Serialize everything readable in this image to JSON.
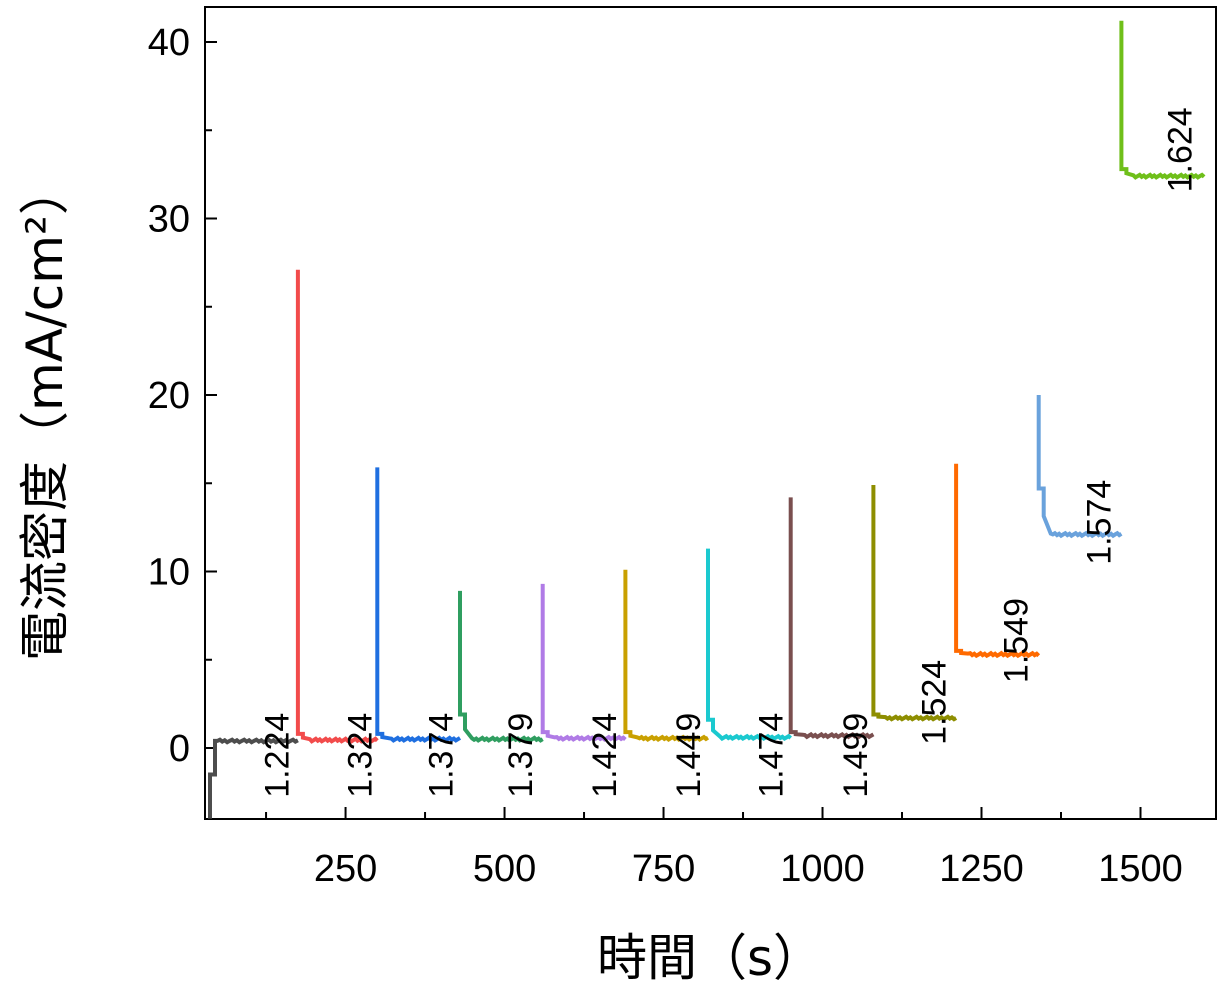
{
  "chart_data": {
    "type": "line",
    "title": "",
    "xlabel": "時間（s）",
    "ylabel": "電流密度（mA/cm²）",
    "xlim": [
      30,
      1610
    ],
    "ylim": [
      -4,
      42
    ],
    "x_ticks": [
      250,
      500,
      750,
      1000,
      1250,
      1500
    ],
    "x_tick_labels": [
      "250",
      "500",
      "750",
      "1000",
      "1250",
      "1500"
    ],
    "y_ticks": [
      0,
      10,
      20,
      30,
      40
    ],
    "y_tick_labels": [
      "0",
      "10",
      "20",
      "30",
      "40"
    ],
    "grid": false,
    "legend": "none",
    "series": [
      {
        "label": "1.224",
        "color": "#4d4d4d",
        "x_start": 40,
        "x_end": 175,
        "peak": -4.0,
        "steady": 0.4,
        "shoulder": 0.4,
        "label_x": 160,
        "label_y_top": 2.0
      },
      {
        "label": "1.324",
        "color": "#f24b4b",
        "x_start": 175,
        "x_end": 300,
        "peak": 27.1,
        "steady": 0.45,
        "shoulder": 0.8,
        "label_x": 291,
        "label_y_top": 2.0
      },
      {
        "label": "1.374",
        "color": "#1f6fe0",
        "x_start": 300,
        "x_end": 430,
        "peak": 15.9,
        "steady": 0.5,
        "shoulder": 0.8,
        "label_x": 418,
        "label_y_top": 2.0
      },
      {
        "label": "1.379",
        "color": "#2f9e60",
        "x_start": 430,
        "x_end": 560,
        "peak": 8.9,
        "steady": 0.5,
        "shoulder": 1.9,
        "label_x": 543,
        "label_y_top": 2.0
      },
      {
        "label": "1.424",
        "color": "#b07be6",
        "x_start": 560,
        "x_end": 690,
        "peak": 9.3,
        "steady": 0.55,
        "shoulder": 0.9,
        "label_x": 675,
        "label_y_top": 2.0
      },
      {
        "label": "1.449",
        "color": "#c9a000",
        "x_start": 690,
        "x_end": 820,
        "peak": 10.1,
        "steady": 0.55,
        "shoulder": 0.9,
        "label_x": 807,
        "label_y_top": 2.0
      },
      {
        "label": "1.474",
        "color": "#1bc9cf",
        "x_start": 820,
        "x_end": 950,
        "peak": 11.3,
        "steady": 0.6,
        "shoulder": 1.6,
        "label_x": 937,
        "label_y_top": 2.0
      },
      {
        "label": "1.499",
        "color": "#7a4f4f",
        "x_start": 950,
        "x_end": 1080,
        "peak": 14.2,
        "steady": 0.7,
        "shoulder": 0.9,
        "label_x": 1070,
        "label_y_top": 2.0
      },
      {
        "label": "1.524",
        "color": "#8e8e00",
        "x_start": 1080,
        "x_end": 1210,
        "peak": 14.9,
        "steady": 1.7,
        "shoulder": 1.9,
        "label_x": 1193,
        "label_y_top": 5.0
      },
      {
        "label": "1.549",
        "color": "#ff6a00",
        "x_start": 1210,
        "x_end": 1340,
        "peak": 16.1,
        "steady": 5.3,
        "shoulder": 5.5,
        "label_x": 1322,
        "label_y_top": 8.5
      },
      {
        "label": "1.574",
        "color": "#6aa2dc",
        "x_start": 1340,
        "x_end": 1470,
        "peak": 20.0,
        "steady": 12.1,
        "shoulder": 14.7,
        "label_x": 1453,
        "label_y_top": 15.2
      },
      {
        "label": "1.624",
        "color": "#6fbf1a",
        "x_start": 1470,
        "x_end": 1600,
        "peak": 41.2,
        "steady": 32.4,
        "shoulder": 32.8,
        "label_x": 1580,
        "label_y_top": 36.3
      }
    ]
  }
}
